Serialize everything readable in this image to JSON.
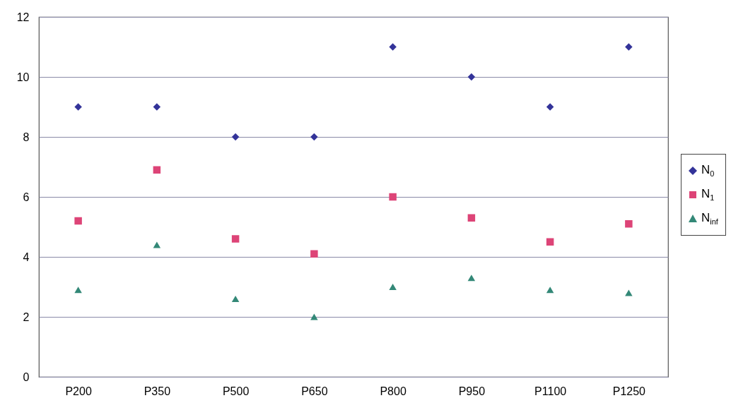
{
  "chart_data": {
    "type": "scatter",
    "categories": [
      "P200",
      "P350",
      "P500",
      "P650",
      "P800",
      "P950",
      "P1100",
      "P1250"
    ],
    "series": [
      {
        "name": "N$_{0}$",
        "color": "#333399",
        "marker": "diamond",
        "values": [
          9,
          9,
          8,
          8,
          11,
          10,
          9,
          11
        ]
      },
      {
        "name": "N$_{1}$",
        "color": "#dd4477",
        "marker": "square",
        "values": [
          5.2,
          6.9,
          4.6,
          4.1,
          6.0,
          5.3,
          4.5,
          5.1
        ]
      },
      {
        "name": "N$_{inf}$",
        "color": "#338877",
        "marker": "triangle",
        "values": [
          2.9,
          4.4,
          2.6,
          2.0,
          3.0,
          3.3,
          2.9,
          2.8
        ]
      }
    ],
    "ylim": [
      0,
      12
    ],
    "yticks": [
      0,
      2,
      4,
      6,
      8,
      10,
      12
    ],
    "grid": "y",
    "legend": "right"
  }
}
